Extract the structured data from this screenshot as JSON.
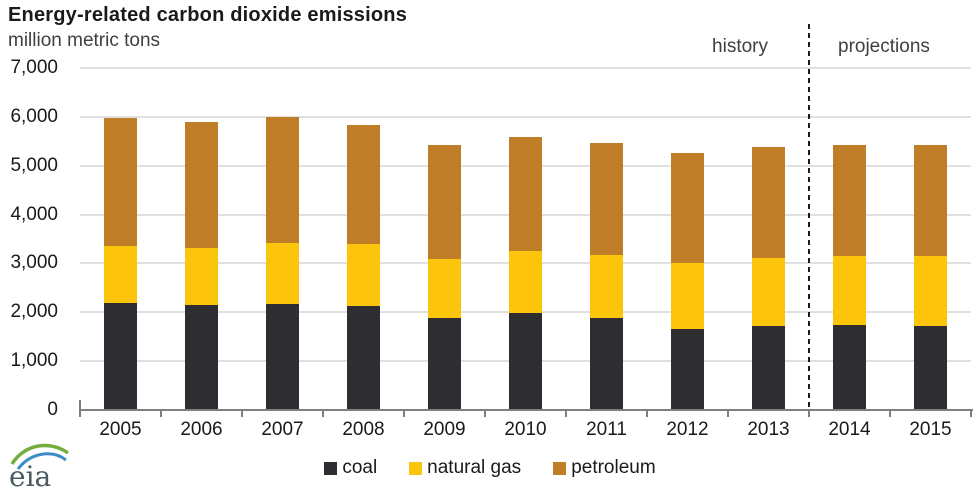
{
  "header": {
    "title": "Energy-related carbon dioxide emissions",
    "subtitle": "million metric tons"
  },
  "annotations": {
    "history": "history",
    "projections": "projections"
  },
  "logo": {
    "text": "eia"
  },
  "colors": {
    "coal": "#2e2d32",
    "natural_gas": "#fdc40c",
    "petroleum": "#bf7d28",
    "gridline": "#e0e0e0",
    "axis": "#7f7f7f",
    "text": "#1a1a1a",
    "secondary_text": "#404040",
    "divider": "#1a1a1a",
    "logo_text": "#4a5a63",
    "logo_arc_green": "#74ac3e",
    "logo_arc_blue": "#3a8dc5"
  },
  "chart_data": {
    "type": "bar",
    "stacked": true,
    "title": "Energy-related carbon dioxide emissions",
    "ylabel": "million metric tons",
    "xlabel": "",
    "grid": "horizontal",
    "legend_position": "bottom",
    "ylim": [
      0,
      7000
    ],
    "ytick_interval": 1000,
    "ytick_labels_top_to_bottom": [
      "7,000",
      "6,000",
      "5,000",
      "4,000",
      "3,000",
      "2,000",
      "1,000",
      "0"
    ],
    "categories": [
      "2005",
      "2006",
      "2007",
      "2008",
      "2009",
      "2010",
      "2011",
      "2012",
      "2013",
      "2014",
      "2015"
    ],
    "series": [
      {
        "name": "coal",
        "color": "#2e2d32",
        "values": [
          2181,
          2147,
          2172,
          2139,
          1876,
          1983,
          1874,
          1653,
          1718,
          1747,
          1720
        ]
      },
      {
        "name": "natural gas",
        "color": "#fdc40c",
        "values": [
          1183,
          1163,
          1237,
          1252,
          1221,
          1280,
          1292,
          1364,
          1391,
          1401,
          1426
        ]
      },
      {
        "name": "petroleum",
        "color": "#bf7d28",
        "values": [
          2623,
          2588,
          2594,
          2443,
          2326,
          2332,
          2292,
          2250,
          2276,
          2269,
          2274
        ]
      }
    ],
    "totals": [
      5987,
      5898,
      6003,
      5834,
      5423,
      5595,
      5458,
      5267,
      5385,
      5417,
      5420
    ],
    "history_categories": [
      "2005",
      "2006",
      "2007",
      "2008",
      "2009",
      "2010",
      "2011",
      "2012",
      "2013"
    ],
    "projection_categories": [
      "2014",
      "2015"
    ],
    "divider_after_category": "2013"
  }
}
